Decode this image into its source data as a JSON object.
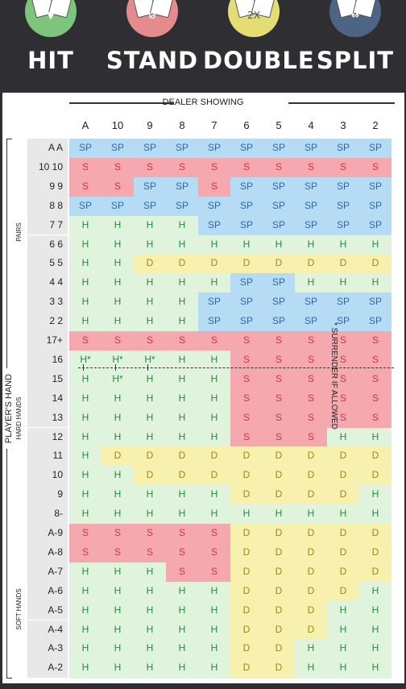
{
  "colors": {
    "hit": "#dff3dd",
    "stand": "#f5a8ad",
    "double": "#f8f0ae",
    "split": "#b6dcf5",
    "hit_icon": "#7dc57a",
    "stand_icon": "#e58b8e",
    "double_icon": "#e4dd73",
    "split_icon": "#4d6584"
  },
  "actions": [
    {
      "label": "HIT",
      "icon": "hit-icon",
      "symbol": "▼"
    },
    {
      "label": "STAND",
      "icon": "stand-icon",
      "symbol": "⊘"
    },
    {
      "label": "DOUBLE",
      "icon": "double-icon",
      "symbol": "2X"
    },
    {
      "label": "SPLIT",
      "icon": "split-icon",
      "symbol": "⇔"
    }
  ],
  "table": {
    "dealer_label": "DEALER SHOWING",
    "player_label": "PLAYER'S HAND",
    "section_pairs": "PAIRS",
    "section_hard": "HARD HANDS",
    "section_soft": "SOFT HANDS",
    "surrender_note": "* SURRENDER IF ALLOWED",
    "dealer_cards": [
      "A",
      "10",
      "9",
      "8",
      "7",
      "6",
      "5",
      "4",
      "3",
      "2"
    ],
    "rows": [
      {
        "label": "A A",
        "cells": [
          "SP",
          "SP",
          "SP",
          "SP",
          "SP",
          "SP",
          "SP",
          "SP",
          "SP",
          "SP"
        ]
      },
      {
        "label": "10 10",
        "cells": [
          "S",
          "S",
          "S",
          "S",
          "S",
          "S",
          "S",
          "S",
          "S",
          "S"
        ]
      },
      {
        "label": "9 9",
        "cells": [
          "S",
          "S",
          "SP",
          "SP",
          "S",
          "SP",
          "SP",
          "SP",
          "SP",
          "SP"
        ]
      },
      {
        "label": "8 8",
        "cells": [
          "SP",
          "SP",
          "SP",
          "SP",
          "SP",
          "SP",
          "SP",
          "SP",
          "SP",
          "SP"
        ]
      },
      {
        "label": "7 7",
        "cells": [
          "H",
          "H",
          "H",
          "H",
          "SP",
          "SP",
          "SP",
          "SP",
          "SP",
          "SP"
        ]
      },
      {
        "label": "6 6",
        "cells": [
          "H",
          "H",
          "H",
          "H",
          "H",
          "H",
          "H",
          "H",
          "H",
          "H"
        ]
      },
      {
        "label": "5 5",
        "cells": [
          "H",
          "H",
          "D",
          "D",
          "D",
          "D",
          "D",
          "D",
          "D",
          "D"
        ]
      },
      {
        "label": "4 4",
        "cells": [
          "H",
          "H",
          "H",
          "H",
          "H",
          "SP",
          "SP",
          "H",
          "H",
          "H"
        ]
      },
      {
        "label": "3 3",
        "cells": [
          "H",
          "H",
          "H",
          "H",
          "SP",
          "SP",
          "SP",
          "SP",
          "SP",
          "SP"
        ]
      },
      {
        "label": "2 2",
        "cells": [
          "H",
          "H",
          "H",
          "H",
          "SP",
          "SP",
          "SP",
          "SP",
          "SP",
          "SP"
        ]
      },
      {
        "label": "17+",
        "cells": [
          "S",
          "S",
          "S",
          "S",
          "S",
          "S",
          "S",
          "S",
          "S",
          "S"
        ]
      },
      {
        "label": "16",
        "cells": [
          "H*",
          "H*",
          "H*",
          "H",
          "H",
          "S",
          "S",
          "S",
          "S",
          "S"
        ]
      },
      {
        "label": "15",
        "cells": [
          "H",
          "H*",
          "H",
          "H",
          "H",
          "S",
          "S",
          "S",
          "S",
          "S"
        ]
      },
      {
        "label": "14",
        "cells": [
          "H",
          "H",
          "H",
          "H",
          "H",
          "S",
          "S",
          "S",
          "S",
          "S"
        ]
      },
      {
        "label": "13",
        "cells": [
          "H",
          "H",
          "H",
          "H",
          "H",
          "S",
          "S",
          "S",
          "S",
          "S"
        ]
      },
      {
        "label": "12",
        "cells": [
          "H",
          "H",
          "H",
          "H",
          "H",
          "S",
          "S",
          "S",
          "H",
          "H"
        ]
      },
      {
        "label": "11",
        "cells": [
          "H",
          "D",
          "D",
          "D",
          "D",
          "D",
          "D",
          "D",
          "D",
          "D"
        ]
      },
      {
        "label": "10",
        "cells": [
          "H",
          "H",
          "D",
          "D",
          "D",
          "D",
          "D",
          "D",
          "D",
          "D"
        ]
      },
      {
        "label": "9",
        "cells": [
          "H",
          "H",
          "H",
          "H",
          "H",
          "D",
          "D",
          "D",
          "D",
          "H"
        ]
      },
      {
        "label": "8-",
        "cells": [
          "H",
          "H",
          "H",
          "H",
          "H",
          "H",
          "H",
          "H",
          "H",
          "H"
        ]
      },
      {
        "label": "A-9",
        "cells": [
          "S",
          "S",
          "S",
          "S",
          "S",
          "D",
          "D",
          "D",
          "D",
          "D"
        ]
      },
      {
        "label": "A-8",
        "cells": [
          "S",
          "S",
          "S",
          "S",
          "S",
          "D",
          "D",
          "D",
          "D",
          "D"
        ]
      },
      {
        "label": "A-7",
        "cells": [
          "H",
          "H",
          "H",
          "S",
          "S",
          "D",
          "D",
          "D",
          "D",
          "D"
        ]
      },
      {
        "label": "A-6",
        "cells": [
          "H",
          "H",
          "H",
          "H",
          "H",
          "D",
          "D",
          "D",
          "D",
          "H"
        ]
      },
      {
        "label": "A-5",
        "cells": [
          "H",
          "H",
          "H",
          "H",
          "H",
          "D",
          "D",
          "D",
          "H",
          "H"
        ]
      },
      {
        "label": "A-4",
        "cells": [
          "H",
          "H",
          "H",
          "H",
          "H",
          "D",
          "D",
          "D",
          "H",
          "H"
        ]
      },
      {
        "label": "A-3",
        "cells": [
          "H",
          "H",
          "H",
          "H",
          "H",
          "D",
          "D",
          "H",
          "H",
          "H"
        ]
      },
      {
        "label": "A-2",
        "cells": [
          "H",
          "H",
          "H",
          "H",
          "H",
          "D",
          "D",
          "H",
          "H",
          "H"
        ]
      }
    ]
  }
}
